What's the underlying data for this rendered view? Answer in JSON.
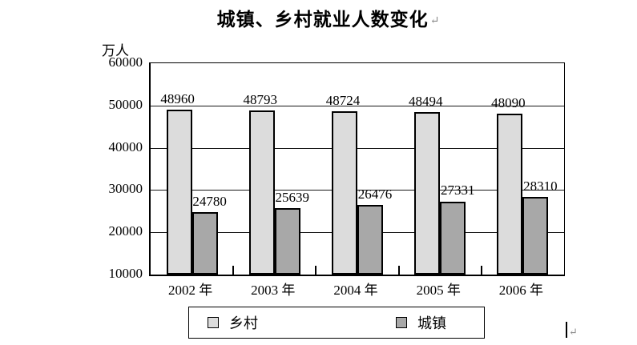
{
  "title": "城镇、乡村就业人数变化",
  "y_axis_unit": "万人",
  "marks": {
    "title_return": "↵",
    "cursor_return": "↵"
  },
  "chart_data": {
    "type": "bar",
    "title": "城镇、乡村就业人数变化",
    "ylabel": "万人",
    "xlabel": "",
    "categories": [
      "2002 年",
      "2003 年",
      "2004 年",
      "2005 年",
      "2006 年"
    ],
    "series": [
      {
        "name": "乡村",
        "color": "#dcdcdc",
        "values": [
          48960,
          48793,
          48724,
          48494,
          48090
        ]
      },
      {
        "name": "城镇",
        "color": "#a8a8a8",
        "values": [
          24780,
          25639,
          26476,
          27331,
          28310
        ]
      }
    ],
    "bar_value_labels": true,
    "ylim": [
      10000,
      60000
    ],
    "yticks": [
      10000,
      20000,
      30000,
      40000,
      50000,
      60000
    ],
    "grid": true,
    "legend_position": "bottom"
  }
}
